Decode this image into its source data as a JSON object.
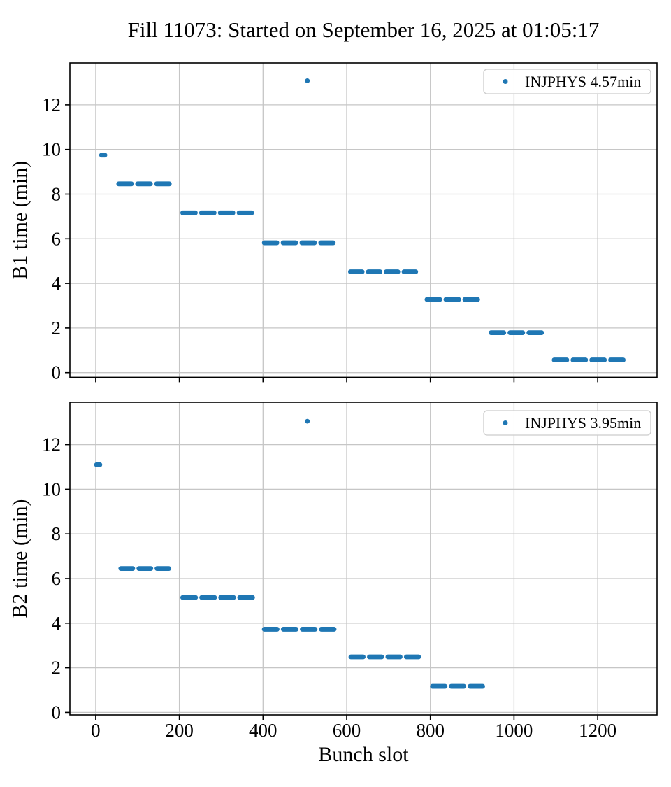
{
  "figure": {
    "title": "Fill 11073: Started on September 16, 2025 at 01:05:17",
    "background_color": "#ffffff",
    "text_color": "#000000"
  },
  "chart_data": [
    {
      "type": "scatter",
      "panel": "top",
      "ylabel": "B1 time (min)",
      "xlabel": "",
      "legend_label": "INJPHYS 4.57min",
      "legend_position": "upper right",
      "marker_color": "#1f77b4",
      "grid": true,
      "grid_color": "#c6c6c6",
      "xlim": [
        -62,
        1342
      ],
      "ylim": [
        -0.21,
        13.88
      ],
      "xticks": [
        0,
        200,
        400,
        600,
        800,
        1000,
        1200
      ],
      "yticks": [
        0,
        2,
        4,
        6,
        8,
        10,
        12
      ],
      "series": [
        {
          "value": 9.75,
          "slot_start": 14,
          "slot_end": 22,
          "trains": 1
        },
        {
          "value": 8.46,
          "slot_start": 55,
          "slot_end": 176,
          "trains": 3
        },
        {
          "value": 7.16,
          "slot_start": 208,
          "slot_end": 373,
          "trains": 4
        },
        {
          "value": 5.82,
          "slot_start": 403,
          "slot_end": 568,
          "trains": 4
        },
        {
          "value": 4.52,
          "slot_start": 609,
          "slot_end": 765,
          "trains": 4
        },
        {
          "value": 3.28,
          "slot_start": 792,
          "slot_end": 913,
          "trains": 3
        },
        {
          "value": 1.79,
          "slot_start": 945,
          "slot_end": 1066,
          "trains": 3
        },
        {
          "value": 0.57,
          "slot_start": 1096,
          "slot_end": 1261,
          "trains": 4
        }
      ],
      "outliers": [
        {
          "slot": 506,
          "value": 13.08
        }
      ]
    },
    {
      "type": "scatter",
      "panel": "bottom",
      "ylabel": "B2 time (min)",
      "xlabel": "Bunch slot",
      "legend_label": "INJPHYS 3.95min",
      "legend_position": "upper right",
      "marker_color": "#1f77b4",
      "grid": true,
      "grid_color": "#c6c6c6",
      "xlim": [
        -62,
        1342
      ],
      "ylim": [
        -0.21,
        13.88
      ],
      "xticks": [
        0,
        200,
        400,
        600,
        800,
        1000,
        1200
      ],
      "yticks": [
        0,
        2,
        4,
        6,
        8,
        10,
        12
      ],
      "series": [
        {
          "value": 11.1,
          "slot_start": 2,
          "slot_end": 10,
          "trains": 1
        },
        {
          "value": 6.45,
          "slot_start": 60,
          "slot_end": 175,
          "trains": 3
        },
        {
          "value": 5.15,
          "slot_start": 208,
          "slot_end": 375,
          "trains": 4
        },
        {
          "value": 3.73,
          "slot_start": 403,
          "slot_end": 570,
          "trains": 4
        },
        {
          "value": 2.49,
          "slot_start": 610,
          "slot_end": 772,
          "trains": 4
        },
        {
          "value": 1.17,
          "slot_start": 805,
          "slot_end": 925,
          "trains": 3
        }
      ],
      "outliers": [
        {
          "slot": 506,
          "value": 13.05
        }
      ]
    }
  ]
}
